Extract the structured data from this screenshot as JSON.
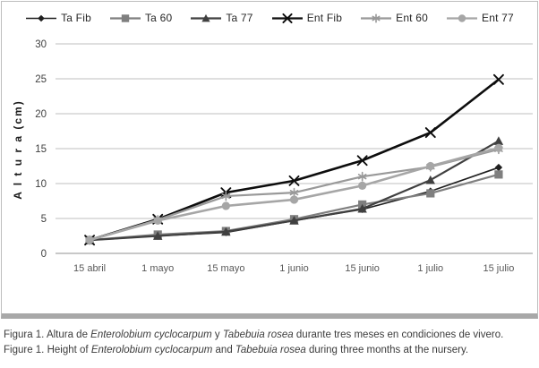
{
  "chart_data": {
    "type": "line",
    "categories": [
      "15 abril",
      "1 mayo",
      "15 mayo",
      "1 junio",
      "15 junio",
      "1 julio",
      "15 julio"
    ],
    "series": [
      {
        "name": "Ta Fib",
        "marker": "diamond",
        "color": "#1f1f1f",
        "line_width": 1.6,
        "values": [
          1.9,
          2.5,
          3.0,
          4.7,
          6.3,
          8.9,
          12.3
        ]
      },
      {
        "name": "Ta 60",
        "marker": "square",
        "color": "#7f7f7f",
        "line_width": 2.2,
        "values": [
          1.9,
          2.7,
          3.2,
          4.9,
          7.0,
          8.6,
          11.3
        ]
      },
      {
        "name": "Ta 77",
        "marker": "triangle",
        "color": "#404040",
        "line_width": 2.2,
        "values": [
          1.9,
          2.5,
          3.1,
          4.7,
          6.4,
          10.5,
          16.1
        ]
      },
      {
        "name": "Ent Fib",
        "marker": "x",
        "color": "#0d0d0d",
        "line_width": 2.6,
        "values": [
          1.9,
          4.9,
          8.7,
          10.4,
          13.3,
          17.3,
          24.9
        ]
      },
      {
        "name": "Ent 60",
        "marker": "asterisk",
        "color": "#999999",
        "line_width": 2.2,
        "values": [
          1.9,
          4.8,
          8.2,
          8.7,
          11.0,
          12.4,
          14.9
        ]
      },
      {
        "name": "Ent 77",
        "marker": "circle",
        "color": "#a6a6a6",
        "line_width": 2.6,
        "values": [
          1.9,
          4.7,
          6.8,
          7.7,
          9.7,
          12.5,
          15.1
        ]
      }
    ],
    "title": "",
    "xlabel": "",
    "ylabel": "A l t u r a   (cm)",
    "ylim": [
      0,
      30
    ],
    "yticks": [
      0,
      5,
      10,
      15,
      20,
      25,
      30
    ],
    "grid": true,
    "legend_position": "top",
    "colors": {
      "gridline": "#bfbfbf",
      "axis_line": "#a6a6a6",
      "ytick_text": "#404040",
      "xtick_text": "#595959",
      "frame_border": "#bdbdbd",
      "frame_bottom_bar": "#a8a8a8"
    }
  },
  "caption": {
    "line1": [
      {
        "text": "Figura 1. Altura de ",
        "italic": false
      },
      {
        "text": "Enterolobium cyclocarpum",
        "italic": true
      },
      {
        "text": " y ",
        "italic": false
      },
      {
        "text": "Tabebuia rosea",
        "italic": true
      },
      {
        "text": " durante tres meses en condiciones de vivero.",
        "italic": false
      }
    ],
    "line2": [
      {
        "text": "Figure 1. Height of ",
        "italic": false
      },
      {
        "text": "Enterolobium cyclocarpum",
        "italic": true
      },
      {
        "text": " and ",
        "italic": false
      },
      {
        "text": "Tabebuia rosea",
        "italic": true
      },
      {
        "text": " during three months at the nursery.",
        "italic": false
      }
    ]
  }
}
